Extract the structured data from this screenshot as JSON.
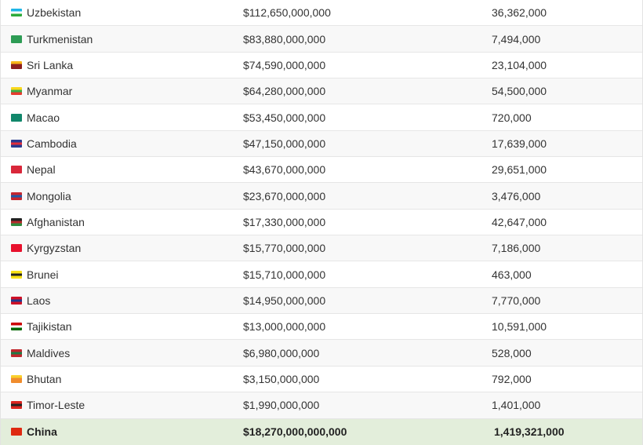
{
  "table": {
    "rows": [
      {
        "country": "Uzbekistan",
        "gdp": "$112,650,000,000",
        "population": "36,362,000",
        "flag_icon": "uzbekistan-flag-icon",
        "flag_colors": [
          "#1eb5e6",
          "#ffffff",
          "#2dab3b"
        ]
      },
      {
        "country": "Turkmenistan",
        "gdp": "$83,880,000,000",
        "population": "7,494,000",
        "flag_icon": "turkmenistan-flag-icon",
        "flag_colors": [
          "#2e9c55",
          "#2e9c55",
          "#2e9c55"
        ]
      },
      {
        "country": "Sri Lanka",
        "gdp": "$74,590,000,000",
        "population": "23,104,000",
        "flag_icon": "sri-lanka-flag-icon",
        "flag_colors": [
          "#f7b519",
          "#8c1f1f",
          "#8c1f1f"
        ]
      },
      {
        "country": "Myanmar",
        "gdp": "$64,280,000,000",
        "population": "54,500,000",
        "flag_icon": "myanmar-flag-icon",
        "flag_colors": [
          "#f9d71c",
          "#3bab4a",
          "#e63a2e"
        ]
      },
      {
        "country": "Macao",
        "gdp": "$53,450,000,000",
        "population": "720,000",
        "flag_icon": "macao-flag-icon",
        "flag_colors": [
          "#11876b",
          "#11876b",
          "#11876b"
        ]
      },
      {
        "country": "Cambodia",
        "gdp": "$47,150,000,000",
        "population": "17,639,000",
        "flag_icon": "cambodia-flag-icon",
        "flag_colors": [
          "#2a3b8f",
          "#e12d3a",
          "#2a3b8f"
        ]
      },
      {
        "country": "Nepal",
        "gdp": "$43,670,000,000",
        "population": "29,651,000",
        "flag_icon": "nepal-flag-icon",
        "flag_colors": [
          "#d9273a",
          "#d9273a",
          "#d9273a"
        ]
      },
      {
        "country": "Mongolia",
        "gdp": "$23,670,000,000",
        "population": "3,476,000",
        "flag_icon": "mongolia-flag-icon",
        "flag_colors": [
          "#c4272f",
          "#1d5aa8",
          "#c4272f"
        ]
      },
      {
        "country": "Afghanistan",
        "gdp": "$17,330,000,000",
        "population": "42,647,000",
        "flag_icon": "afghanistan-flag-icon",
        "flag_colors": [
          "#222222",
          "#b52c2c",
          "#2e8b3f"
        ]
      },
      {
        "country": "Kyrgyzstan",
        "gdp": "$15,770,000,000",
        "population": "7,186,000",
        "flag_icon": "kyrgyzstan-flag-icon",
        "flag_colors": [
          "#e8112d",
          "#e8112d",
          "#e8112d"
        ]
      },
      {
        "country": "Brunei",
        "gdp": "$15,710,000,000",
        "population": "463,000",
        "flag_icon": "brunei-flag-icon",
        "flag_colors": [
          "#f7e017",
          "#222222",
          "#f7e017"
        ]
      },
      {
        "country": "Laos",
        "gdp": "$14,950,000,000",
        "population": "7,770,000",
        "flag_icon": "laos-flag-icon",
        "flag_colors": [
          "#ce1126",
          "#1e3a8f",
          "#ce1126"
        ]
      },
      {
        "country": "Tajikistan",
        "gdp": "$13,000,000,000",
        "population": "10,591,000",
        "flag_icon": "tajikistan-flag-icon",
        "flag_colors": [
          "#cc0000",
          "#ffffff",
          "#006600"
        ]
      },
      {
        "country": "Maldives",
        "gdp": "$6,980,000,000",
        "population": "528,000",
        "flag_icon": "maldives-flag-icon",
        "flag_colors": [
          "#c1272d",
          "#1f7a45",
          "#c1272d"
        ]
      },
      {
        "country": "Bhutan",
        "gdp": "$3,150,000,000",
        "population": "792,000",
        "flag_icon": "bhutan-flag-icon",
        "flag_colors": [
          "#f9d02d",
          "#f08c2d",
          "#f08c2d"
        ]
      },
      {
        "country": "Timor-Leste",
        "gdp": "$1,990,000,000",
        "population": "1,401,000",
        "flag_icon": "timor-leste-flag-icon",
        "flag_colors": [
          "#dc241f",
          "#222222",
          "#dc241f"
        ]
      },
      {
        "country": "China",
        "gdp": "$18,270,000,000,000",
        "population": "1,419,321,000",
        "flag_icon": "china-flag-icon",
        "flag_colors": [
          "#de2910",
          "#de2910",
          "#de2910"
        ],
        "highlighted": true
      }
    ]
  }
}
